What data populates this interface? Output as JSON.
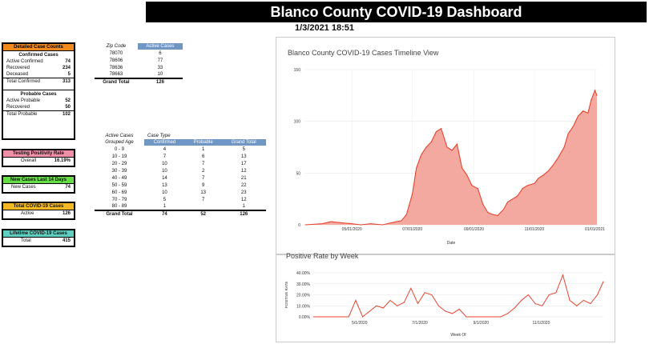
{
  "header": {
    "title": "Blanco County COVID-19 Dashboard",
    "datetime": "1/3/2021 18:51"
  },
  "detailed": {
    "title": "Detailed Case Counts",
    "confirmed_title": "Confirmed Cases",
    "active_label": "Active Confirmed",
    "active_value": "74",
    "recovered_label": "Recovered",
    "recovered_value": "234",
    "deceased_label": "Deceased",
    "deceased_value": "5",
    "total_confirmed_label": "Total Confirmed",
    "total_confirmed_value": "313",
    "probable_title": "Probable Cases",
    "active_probable_label": "Active Probable",
    "active_probable_value": "52",
    "prob_recovered_label": "Recovered",
    "prob_recovered_value": "50",
    "total_probable_label": "Total Probable",
    "total_probable_value": "102"
  },
  "positivity": {
    "title": "Testing Positivity Rate",
    "label": "Overall",
    "value": "16.19%",
    "color": "#f08fa8"
  },
  "new_cases": {
    "title": "New Cases Last 14 Days",
    "label": "New Cases",
    "value": "74",
    "color": "#66dd44"
  },
  "total_cases": {
    "title": "Total COVID-19 Cases",
    "label": "Active",
    "value": "126",
    "color": "#f5b921"
  },
  "lifetime": {
    "title": "Lifetime COVID-19 Cases",
    "label": "Total",
    "value": "415",
    "color": "#5fd0c0"
  },
  "zip_table": {
    "headers": [
      "Zip Code",
      "Active Cases"
    ],
    "rows": [
      [
        "78070",
        "6"
      ],
      [
        "78606",
        "77"
      ],
      [
        "78636",
        "33"
      ],
      [
        "78663",
        "10"
      ]
    ],
    "total": [
      "Grand Total",
      "126"
    ]
  },
  "age_table": {
    "header1": [
      "Active Cases",
      "Case Type"
    ],
    "header2": [
      "Grouped Age",
      "Confirmed",
      "Probable",
      "Grand Total"
    ],
    "rows": [
      [
        "0 - 9",
        "4",
        "1",
        "5"
      ],
      [
        "10 - 19",
        "7",
        "6",
        "13"
      ],
      [
        "20 - 29",
        "10",
        "7",
        "17"
      ],
      [
        "30 - 39",
        "10",
        "2",
        "12"
      ],
      [
        "40 - 49",
        "14",
        "7",
        "21"
      ],
      [
        "50 - 59",
        "13",
        "9",
        "22"
      ],
      [
        "60 - 69",
        "10",
        "13",
        "23"
      ],
      [
        "70 - 79",
        "5",
        "7",
        "12"
      ],
      [
        "80 - 89",
        "1",
        "",
        "1"
      ]
    ],
    "total": [
      "Grand Total",
      "74",
      "52",
      "126"
    ]
  },
  "chart_data": [
    {
      "type": "area",
      "title": "Blanco County COVID-19 Cases Timeline View",
      "xlabel": "Date",
      "ylabel": "",
      "ylim": [
        0,
        150
      ],
      "yticks": [
        0,
        50,
        100,
        150
      ],
      "xticks": [
        "05/01/2020",
        "07/01/2020",
        "09/01/2020",
        "11/01/2020",
        "01/01/2021"
      ],
      "x_range": [
        "2020-03-15",
        "2021-01-03"
      ],
      "color": "#e8432e",
      "fill": "#f4a9a0",
      "x": [
        "2020-03-15",
        "2020-04-01",
        "2020-04-10",
        "2020-04-20",
        "2020-05-01",
        "2020-05-10",
        "2020-05-20",
        "2020-06-01",
        "2020-06-10",
        "2020-06-20",
        "2020-06-25",
        "2020-07-01",
        "2020-07-05",
        "2020-07-10",
        "2020-07-15",
        "2020-07-20",
        "2020-07-25",
        "2020-07-30",
        "2020-08-05",
        "2020-08-10",
        "2020-08-15",
        "2020-08-20",
        "2020-08-25",
        "2020-08-30",
        "2020-09-05",
        "2020-09-10",
        "2020-09-15",
        "2020-09-20",
        "2020-09-25",
        "2020-10-01",
        "2020-10-05",
        "2020-10-10",
        "2020-10-15",
        "2020-10-20",
        "2020-10-25",
        "2020-11-01",
        "2020-11-05",
        "2020-11-10",
        "2020-11-15",
        "2020-11-20",
        "2020-11-25",
        "2020-12-01",
        "2020-12-05",
        "2020-12-10",
        "2020-12-15",
        "2020-12-20",
        "2020-12-25",
        "2020-12-28",
        "2021-01-01",
        "2021-01-03"
      ],
      "values": [
        0,
        1,
        3,
        2,
        1,
        0,
        1,
        0,
        2,
        4,
        10,
        30,
        55,
        68,
        75,
        80,
        90,
        93,
        75,
        72,
        78,
        55,
        48,
        38,
        35,
        20,
        12,
        10,
        9,
        15,
        22,
        25,
        28,
        35,
        38,
        40,
        45,
        48,
        52,
        58,
        65,
        75,
        88,
        95,
        105,
        110,
        108,
        120,
        130,
        125
      ]
    },
    {
      "type": "line",
      "title": "Positive Rate by Week",
      "xlabel": "Week Of",
      "ylabel": "POSITIVE RATE",
      "ylim": [
        0,
        40
      ],
      "yticks": [
        "0.00%",
        "10.00%",
        "20.00%",
        "30.00%",
        "40.00%"
      ],
      "xticks": [
        "5/1/2020",
        "7/1/2020",
        "9/1/2020",
        "11/1/2020"
      ],
      "x_range": [
        "2020-03-15",
        "2021-01-03"
      ],
      "color": "#e8432e",
      "x": [
        "2020-03-15",
        "2020-04-10",
        "2020-04-20",
        "2020-04-27",
        "2020-05-04",
        "2020-05-11",
        "2020-05-18",
        "2020-05-25",
        "2020-06-01",
        "2020-06-08",
        "2020-06-15",
        "2020-06-22",
        "2020-06-29",
        "2020-07-06",
        "2020-07-13",
        "2020-07-20",
        "2020-07-27",
        "2020-08-03",
        "2020-08-10",
        "2020-08-17",
        "2020-08-24",
        "2020-08-31",
        "2020-09-07",
        "2020-09-14",
        "2020-09-21",
        "2020-09-28",
        "2020-10-05",
        "2020-10-12",
        "2020-10-19",
        "2020-10-26",
        "2020-11-02",
        "2020-11-09",
        "2020-11-16",
        "2020-11-23",
        "2020-11-30",
        "2020-12-07",
        "2020-12-14",
        "2020-12-21",
        "2020-12-28",
        "2021-01-03"
      ],
      "values": [
        0,
        0,
        0,
        15,
        0,
        5,
        10,
        8,
        15,
        10,
        13,
        26,
        12,
        22,
        20,
        10,
        5,
        3,
        7,
        0,
        0,
        0,
        0,
        0,
        0,
        3,
        8,
        15,
        20,
        12,
        10,
        20,
        22,
        38,
        15,
        10,
        15,
        12,
        20,
        32
      ]
    }
  ]
}
